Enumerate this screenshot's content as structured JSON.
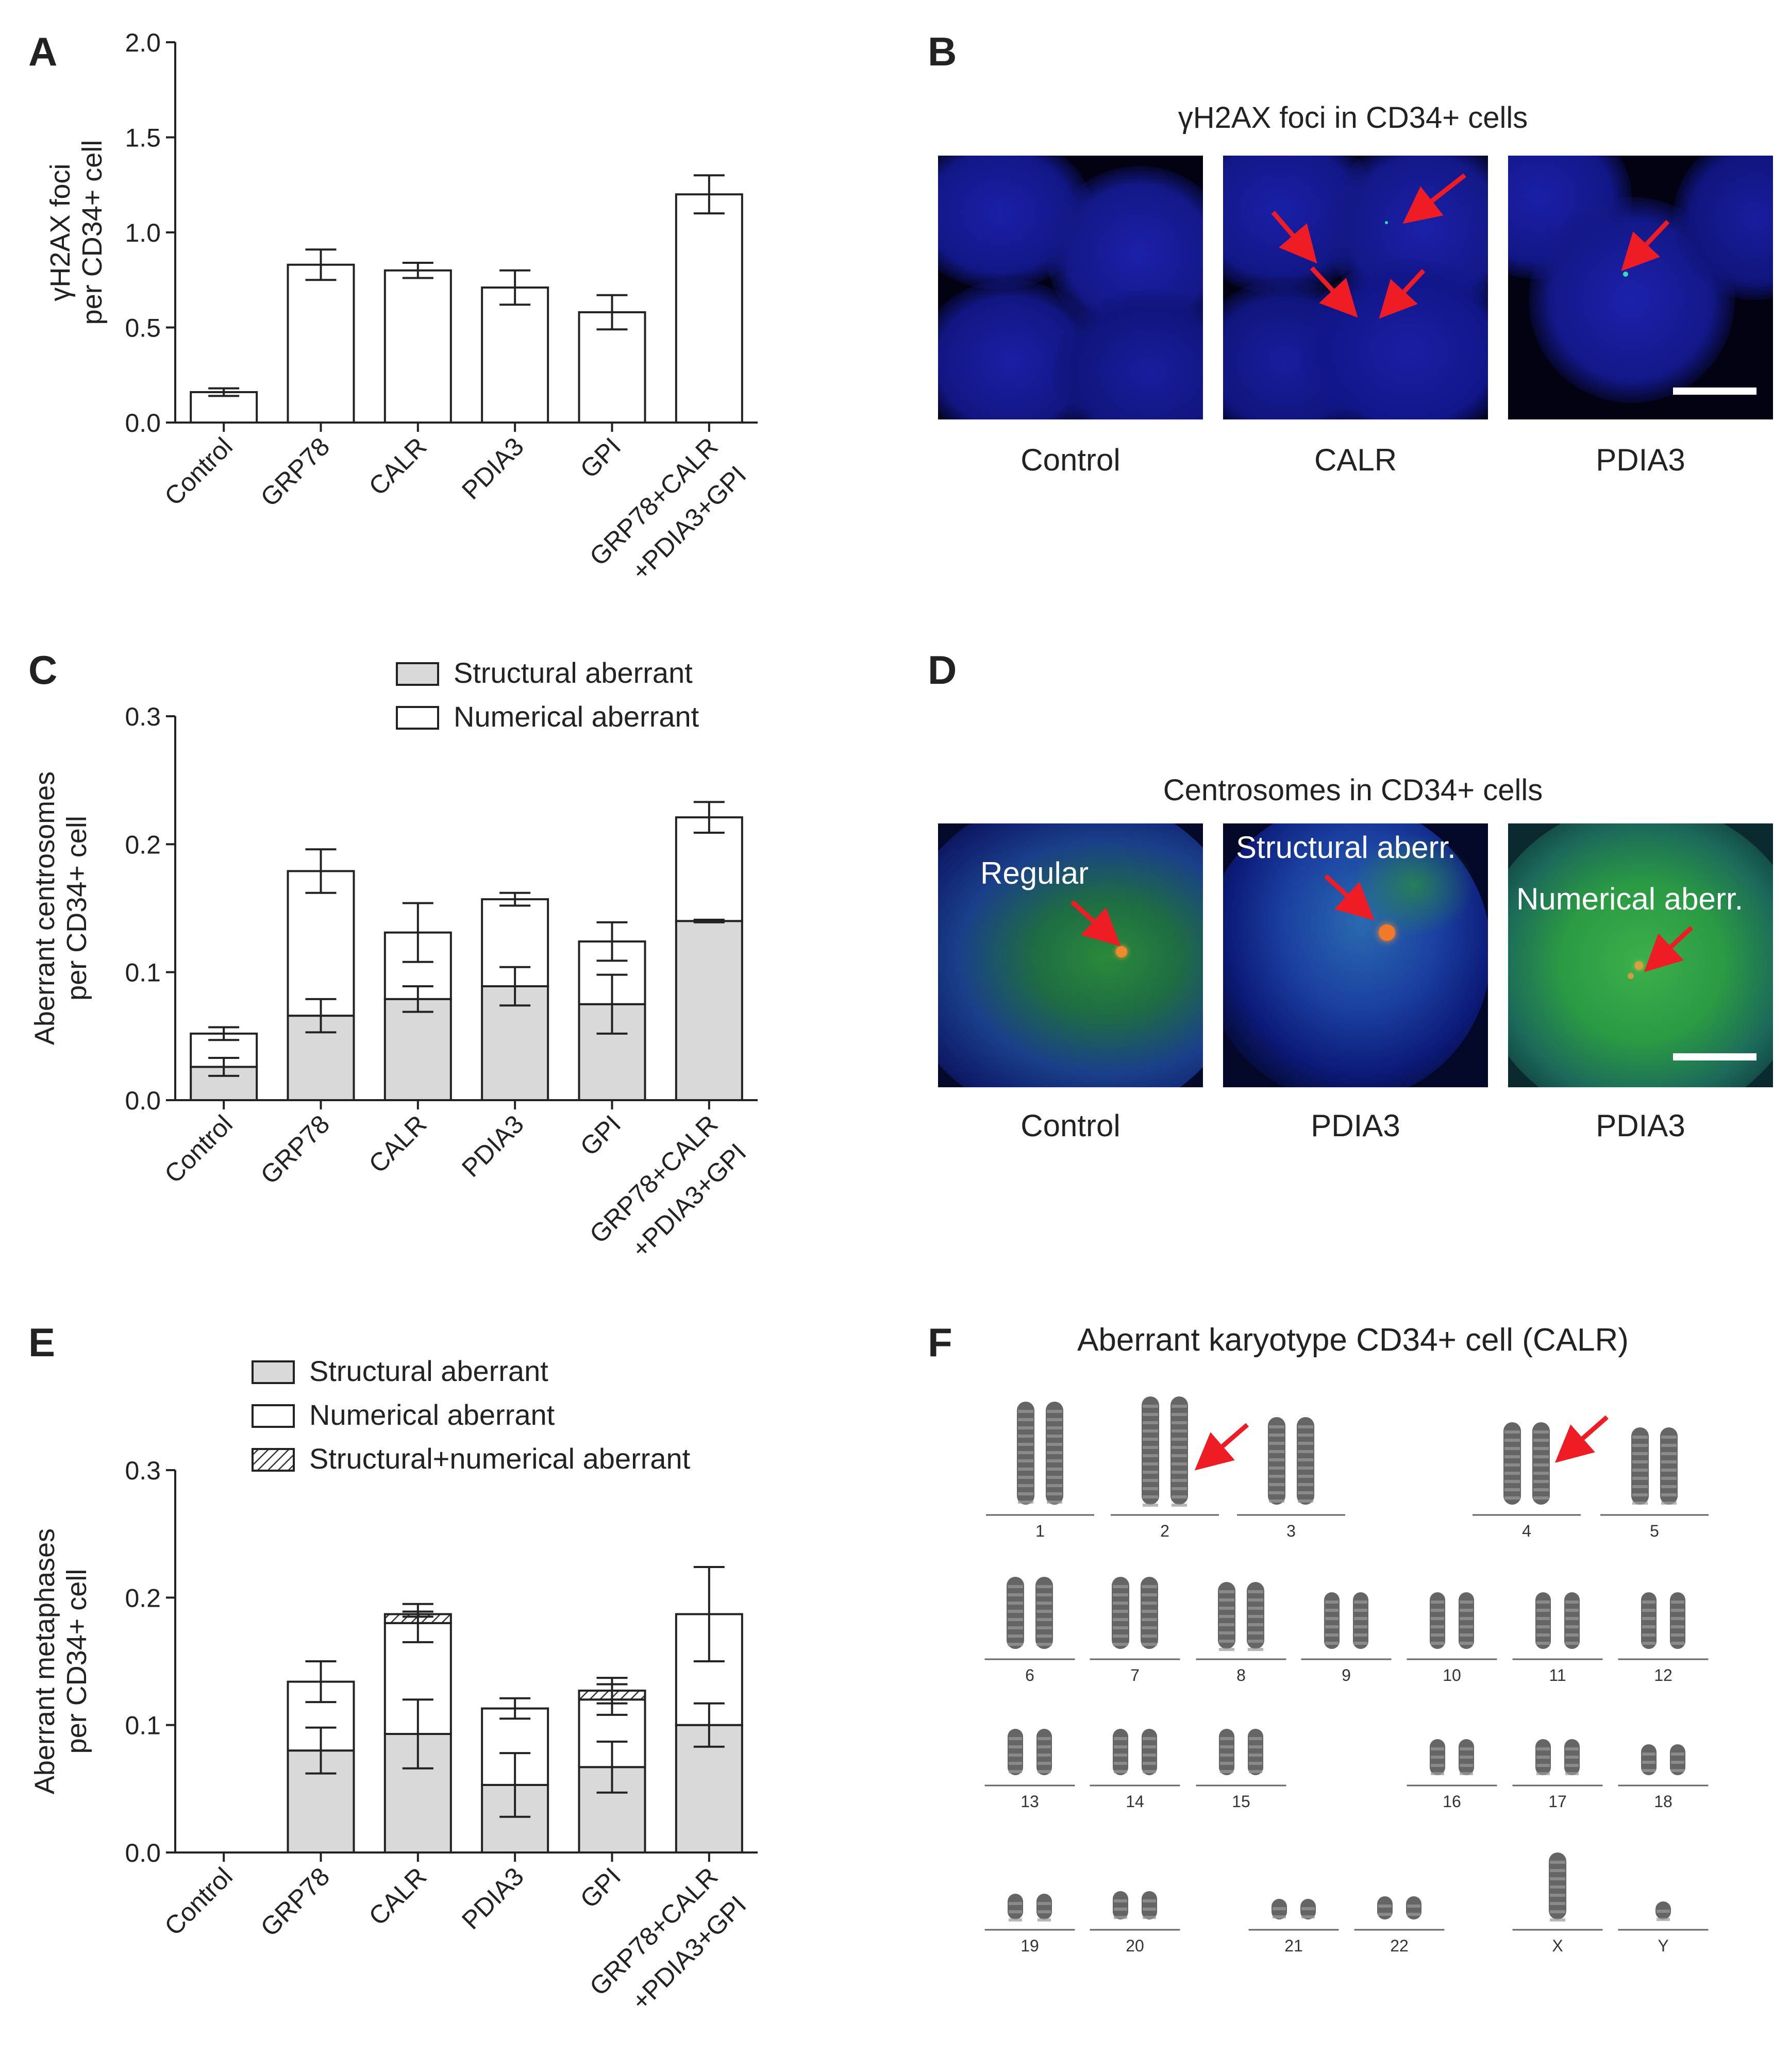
{
  "panels": {
    "A": {
      "letter": "A"
    },
    "B": {
      "letter": "B",
      "title": "γH2AX foci in CD34+ cells",
      "captions": [
        "Control",
        "CALR",
        "PDIA3"
      ]
    },
    "C": {
      "letter": "C"
    },
    "D": {
      "letter": "D",
      "title": "Centrosomes in CD34+ cells",
      "captions": [
        "Control",
        "PDIA3",
        "PDIA3"
      ],
      "labels": [
        "Regular",
        "Structural aberr.",
        "Numerical aberr."
      ]
    },
    "E": {
      "letter": "E"
    },
    "F": {
      "letter": "F",
      "title": "Aberrant karyotype CD34+ cell (CALR)",
      "chromosome_labels": [
        "1",
        "2",
        "3",
        "4",
        "5",
        "6",
        "7",
        "8",
        "9",
        "10",
        "11",
        "12",
        "13",
        "14",
        "15",
        "16",
        "17",
        "18",
        "19",
        "20",
        "21",
        "22",
        "X",
        "Y"
      ]
    }
  },
  "colors": {
    "structural": "#d9d9d9",
    "numerical": "#ffffff",
    "arrow": "#ee1c24",
    "axis": "#222222"
  },
  "chart_data": [
    {
      "id": "A",
      "type": "bar",
      "ylabel": "γH2AX foci\nper CD34+ cell",
      "ylim": [
        0,
        2.0
      ],
      "yticks": [
        "0.0",
        "0.5",
        "1.0",
        "1.5",
        "2.0"
      ],
      "categories": [
        "Control",
        "GRP78",
        "CALR",
        "PDIA3",
        "GPI",
        "GRP78+CALR\n+PDIA3+GPI"
      ],
      "values": [
        0.16,
        0.83,
        0.8,
        0.71,
        0.58,
        1.2
      ],
      "errors": [
        0.02,
        0.08,
        0.04,
        0.09,
        0.09,
        0.1
      ]
    },
    {
      "id": "C",
      "type": "bar",
      "stacked": true,
      "ylabel": "Aberrant centrosomes\nper CD34+ cell",
      "ylim": [
        0,
        0.3
      ],
      "yticks": [
        "0.0",
        "0.1",
        "0.2",
        "0.3"
      ],
      "categories": [
        "Control",
        "GRP78",
        "CALR",
        "PDIA3",
        "GPI",
        "GRP78+CALR\n+PDIA3+GPI"
      ],
      "legend": [
        "Structural aberrant",
        "Numerical aberrant"
      ],
      "series": [
        {
          "name": "Structural aberrant",
          "values": [
            0.026,
            0.066,
            0.079,
            0.089,
            0.075,
            0.14
          ],
          "errors": [
            0.007,
            0.013,
            0.01,
            0.015,
            0.023,
            0.001
          ]
        },
        {
          "name": "Numerical aberrant",
          "values": [
            0.026,
            0.113,
            0.052,
            0.068,
            0.049,
            0.081
          ],
          "errors": [
            0.005,
            0.017,
            0.023,
            0.005,
            0.015,
            0.012
          ]
        }
      ]
    },
    {
      "id": "E",
      "type": "bar",
      "stacked": true,
      "ylabel": "Aberrant metaphases\nper CD34+ cell",
      "ylim": [
        0,
        0.3
      ],
      "yticks": [
        "0.0",
        "0.1",
        "0.2",
        "0.3"
      ],
      "categories": [
        "Control",
        "GRP78",
        "CALR",
        "PDIA3",
        "GPI",
        "GRP78+CALR\n+PDIA3+GPI"
      ],
      "legend": [
        "Structural aberrant",
        "Numerical aberrant",
        "Structural+numerical aberrant"
      ],
      "series": [
        {
          "name": "Structural aberrant",
          "values": [
            0,
            0.08,
            0.093,
            0.053,
            0.067,
            0.1
          ],
          "errors": [
            0,
            0.018,
            0.027,
            0.025,
            0.02,
            0.017
          ]
        },
        {
          "name": "Numerical aberrant",
          "values": [
            0,
            0.054,
            0.087,
            0.06,
            0.053,
            0.087
          ],
          "errors": [
            0,
            0.016,
            0.015,
            0.008,
            0.012,
            0.037
          ]
        },
        {
          "name": "Structural+numerical aberrant",
          "values": [
            0,
            0,
            0.007,
            0,
            0.007,
            0
          ],
          "errors": [
            0,
            0,
            0.002,
            0,
            0.01,
            0
          ]
        }
      ]
    }
  ]
}
